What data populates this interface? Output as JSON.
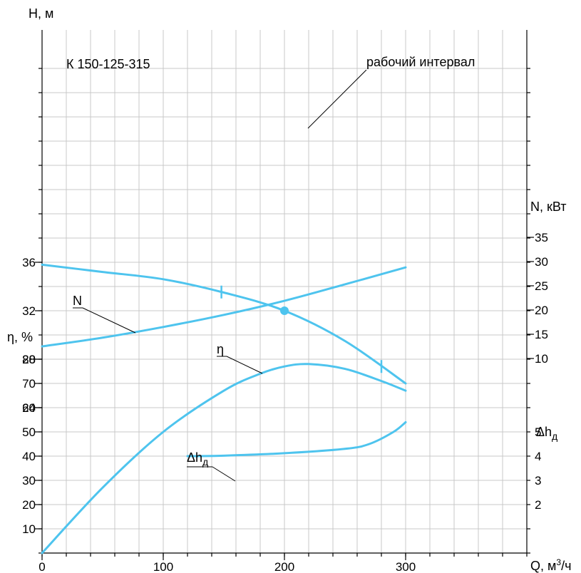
{
  "chart_data": {
    "type": "line",
    "title": "К 150-125-315",
    "x_axis": {
      "label": "Q, м³/ч",
      "label_main": "Q, м",
      "label_sup": "3",
      "label_tail": "/ч",
      "ticks": [
        0,
        100,
        200,
        300
      ],
      "range": [
        0,
        400
      ]
    },
    "axes": {
      "H": {
        "label": "H, м",
        "ticks": [
          24,
          28,
          32,
          36
        ]
      },
      "eta": {
        "label": "η, %",
        "ticks": [
          10,
          20,
          30,
          40,
          50,
          60,
          70,
          80
        ]
      },
      "N": {
        "label": "N, кВт",
        "ticks": [
          10,
          15,
          20,
          25,
          30,
          35
        ]
      },
      "dh": {
        "label": "Δhд",
        "label_main": "Δh",
        "label_sub": "д",
        "ticks": [
          2,
          3,
          4,
          5
        ]
      }
    },
    "series": [
      {
        "name": "H",
        "axis": "H",
        "x": [
          0,
          50,
          100,
          150,
          200,
          250,
          300
        ],
        "y": [
          35.8,
          35.2,
          34.6,
          33.5,
          32.0,
          29.5,
          26.0
        ]
      },
      {
        "name": "N",
        "axis": "N",
        "x": [
          0,
          50,
          100,
          150,
          200,
          250,
          300
        ],
        "y": [
          12.5,
          14.3,
          16.5,
          19.0,
          21.9,
          25.3,
          28.8
        ]
      },
      {
        "name": "η",
        "axis": "eta",
        "x": [
          0,
          50,
          100,
          150,
          180,
          200,
          220,
          250,
          280,
          300
        ],
        "y": [
          0,
          27,
          50,
          67,
          74,
          77,
          78,
          76,
          71,
          67
        ]
      },
      {
        "name": "Δhд",
        "axis": "dh",
        "x": [
          120,
          150,
          200,
          250,
          270,
          290,
          300
        ],
        "y": [
          4.0,
          4.02,
          4.12,
          4.3,
          4.5,
          5.0,
          5.4
        ]
      }
    ],
    "operating_point": {
      "x": 200,
      "y": 32
    },
    "working_interval": {
      "from": 148,
      "to": 280,
      "label": "рабочий интервал"
    },
    "curve_color": "#4ec4ee",
    "grid": true
  }
}
